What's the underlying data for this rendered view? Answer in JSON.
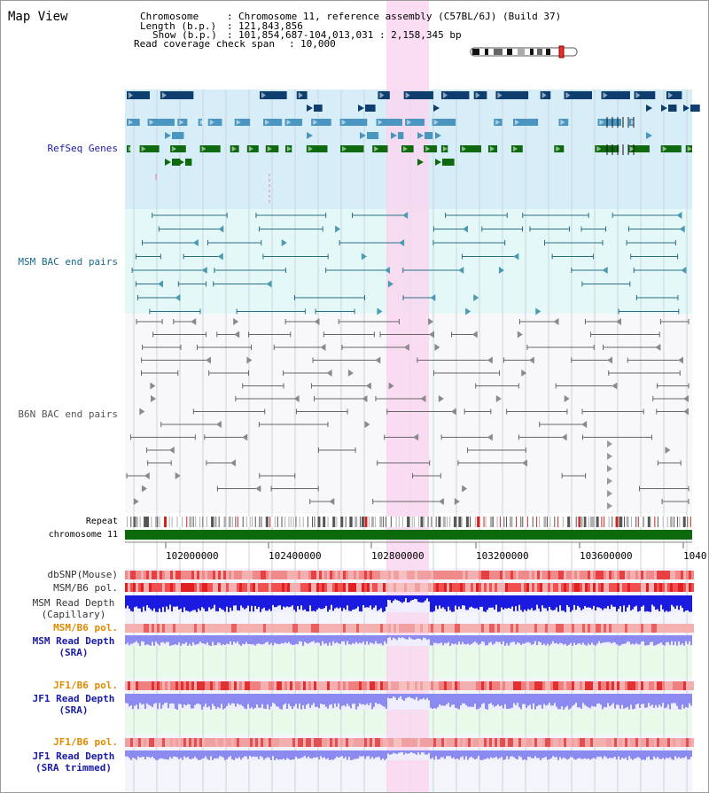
{
  "title": "Map View",
  "info": {
    "chromosome_label": "Chromosome",
    "chromosome_value": "Chromosome 11, reference assembly (C57BL/6J) (Build 37)",
    "length_label": "Length (b.p.)",
    "length_value": "121,843,856",
    "show_label": "Show (b.p.)",
    "show_value": "101,854,687-104,013,031 : 2,158,345 bp",
    "span_label": "Read coverage check span",
    "span_value": "10,000"
  },
  "tracks": {
    "refseq": "RefSeq Genes",
    "msm_bac": "MSM BAC end pairs",
    "b6n_bac": "B6N BAC end pairs",
    "repeat": "Repeat",
    "chromosome": "chromosome 11",
    "dbsnp": "dbSNP(Mouse)",
    "msm_pol_1": "MSM/B6 pol.",
    "msm_depth_cap_1": "MSM Read Depth",
    "msm_depth_cap_2": "(Capillary)",
    "msm_pol_2": "MSM/B6 pol.",
    "msm_depth_sra_1": "MSM Read Depth",
    "msm_depth_sra_2": "(SRA)",
    "jf1_pol_1": "JF1/B6 pol.",
    "jf1_depth_sra_1": "JF1 Read Depth",
    "jf1_depth_sra_2": "(SRA)",
    "jf1_pol_2": "JF1/B6 pol.",
    "jf1_depth_trim_1": "JF1 Read Depth",
    "jf1_depth_trim_2": "(SRA trimmed)"
  },
  "axis": {
    "ticks": [
      "102000000",
      "102400000",
      "102800000",
      "103200000",
      "103600000",
      "1040"
    ]
  },
  "colors": {
    "refseq_bg": "#d7eef8",
    "msm_bg": "#e4f8f8",
    "highlight": "#f9d7f0",
    "refseq_dark": "#0d3e6e",
    "refseq_mid": "#4b96c0",
    "refseq_green": "#0f6a0f",
    "msm_line": "#2a6f86",
    "b6n_line": "#666666",
    "chromosome_bar": "#0c6a0c",
    "depth_blue": "#1a1ae0",
    "depth_light": "#8a8af0",
    "label_blue": "#1a1aa8",
    "label_orange": "#e08a00",
    "label_teal": "#1a6a8a"
  }
}
